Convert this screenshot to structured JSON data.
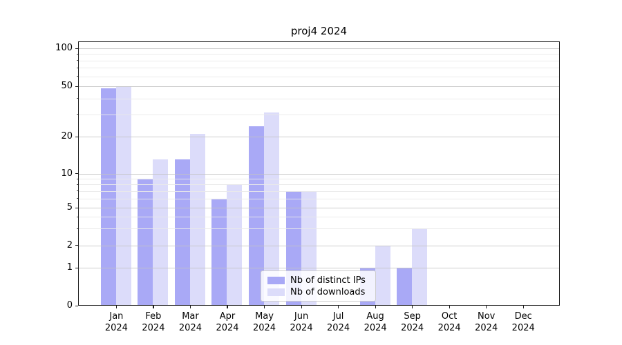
{
  "title": "proj4 2024",
  "legend": [
    {
      "label": "Nb of distinct IPs",
      "color": "#a9a9f6",
      "swatch": "medium-purple"
    },
    {
      "label": "Nb of downloads",
      "color": "#dcdcfa",
      "swatch": "light-purple"
    }
  ],
  "chart_data": {
    "type": "bar",
    "title": "proj4 2024",
    "categories": [
      "Jan",
      "Feb",
      "Mar",
      "Apr",
      "May",
      "Jun",
      "Jul",
      "Aug",
      "Sep",
      "Oct",
      "Nov",
      "Dec"
    ],
    "category_year": "2024",
    "series": [
      {
        "name": "Nb of distinct IPs",
        "color": "#a9a9f6",
        "values": [
          48,
          9,
          13,
          6,
          24,
          7,
          0,
          1,
          1,
          0,
          0,
          0
        ]
      },
      {
        "name": "Nb of downloads",
        "color": "#dcdcfa",
        "values": [
          50,
          13,
          21,
          8,
          31,
          7,
          0,
          2,
          3,
          0,
          0,
          0
        ]
      }
    ],
    "xlabel": "",
    "ylabel": "",
    "yscale": "symlog",
    "yticks": [
      0,
      1,
      2,
      5,
      10,
      20,
      50,
      100
    ],
    "ytick_labels": [
      "0",
      "1",
      "2",
      "5",
      "10",
      "20",
      "50",
      "100"
    ],
    "ylim": [
      0,
      100
    ],
    "grid": {
      "horizontal_major": true,
      "horizontal_minor": true,
      "vertical": false
    },
    "legend_position": "lower-center"
  }
}
